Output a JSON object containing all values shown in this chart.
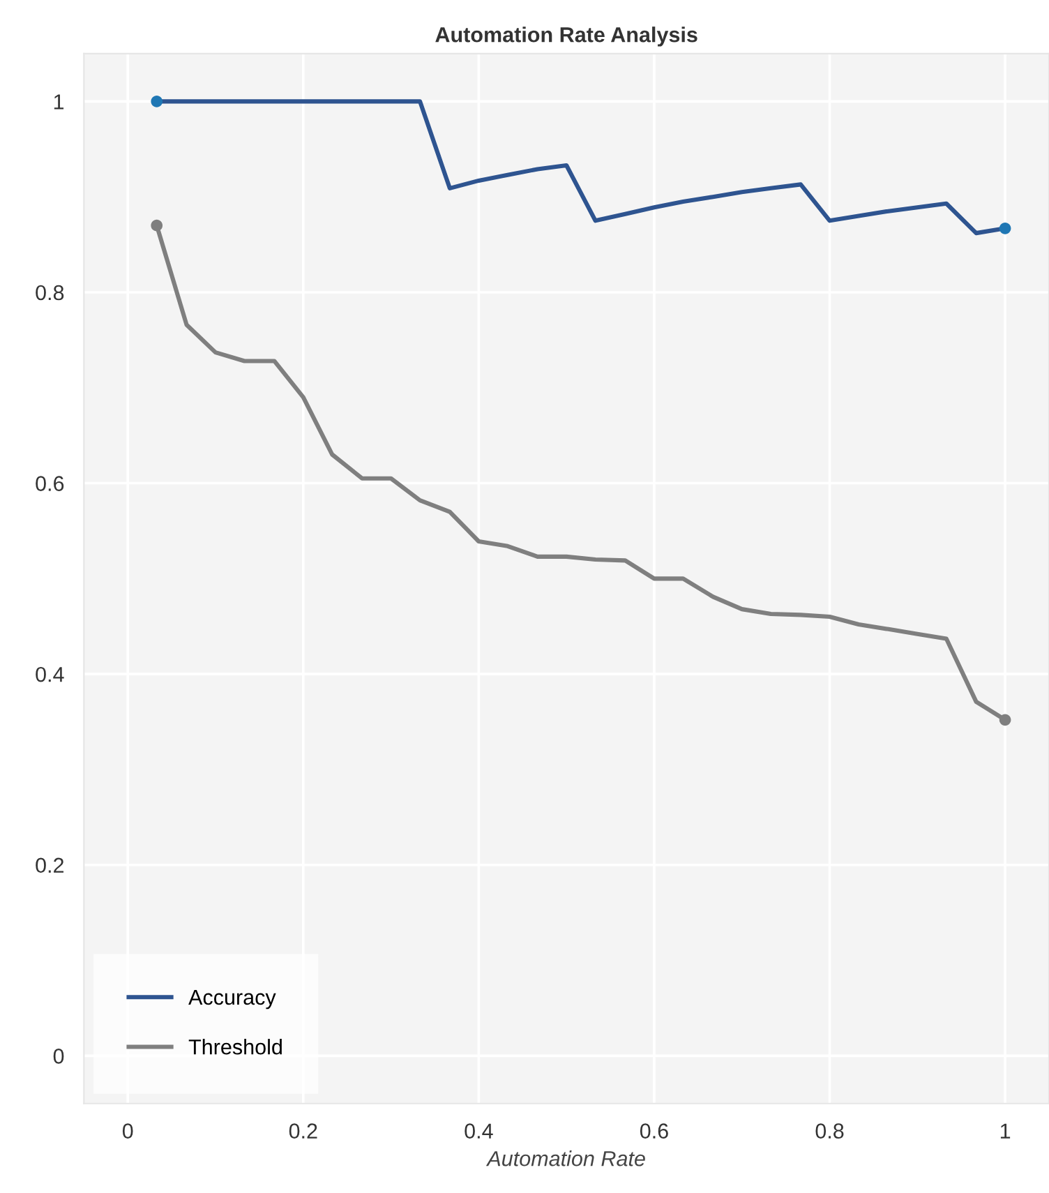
{
  "chart_data": {
    "type": "line",
    "title": "Automation Rate Analysis",
    "xlabel": "Automation Rate",
    "x": [
      0.033,
      0.067,
      0.1,
      0.133,
      0.167,
      0.2,
      0.233,
      0.267,
      0.3,
      0.333,
      0.367,
      0.4,
      0.433,
      0.467,
      0.5,
      0.533,
      0.567,
      0.6,
      0.633,
      0.667,
      0.7,
      0.733,
      0.767,
      0.8,
      0.833,
      0.867,
      0.9,
      0.933,
      0.967,
      1.0
    ],
    "series": [
      {
        "name": "Accuracy",
        "color": "#2e5490",
        "values": [
          1,
          1,
          1,
          1,
          1,
          1,
          1,
          1,
          1,
          1,
          0.909,
          0.917,
          0.923,
          0.929,
          0.933,
          0.875,
          0.882,
          0.889,
          0.895,
          0.9,
          0.905,
          0.909,
          0.913,
          0.875,
          0.88,
          0.885,
          0.889,
          0.893,
          0.862,
          0.867
        ]
      },
      {
        "name": "Threshold",
        "color": "#7f7f7f",
        "values": [
          0.87,
          0.766,
          0.737,
          0.728,
          0.728,
          0.69,
          0.63,
          0.605,
          0.605,
          0.582,
          0.57,
          0.539,
          0.534,
          0.523,
          0.523,
          0.52,
          0.519,
          0.5,
          0.5,
          0.481,
          0.468,
          0.463,
          0.462,
          0.46,
          0.452,
          0.447,
          0.442,
          0.437,
          0.371,
          0.352
        ]
      },
      {
        "type": "scatter",
        "color": "#1f77b4",
        "values": [
          1,
          null,
          null,
          null,
          null,
          null,
          null,
          null,
          null,
          null,
          null,
          null,
          null,
          null,
          null,
          null,
          null,
          null,
          null,
          null,
          null,
          null,
          null,
          null,
          null,
          null,
          null,
          null,
          null,
          0.867
        ]
      },
      {
        "type": "scatter",
        "color": "#7f7f7f",
        "values": [
          0.87,
          null,
          null,
          null,
          null,
          null,
          null,
          null,
          null,
          null,
          null,
          null,
          null,
          null,
          null,
          null,
          null,
          null,
          null,
          null,
          null,
          null,
          null,
          null,
          null,
          null,
          null,
          null,
          null,
          0.352
        ]
      }
    ],
    "xlim": [
      -0.05,
      1.05
    ],
    "ylim": [
      -0.05,
      1.05
    ],
    "xticks": [
      0,
      0.2,
      0.4,
      0.6,
      0.8,
      1
    ],
    "yticks": [
      0,
      0.2,
      0.4,
      0.6,
      0.8,
      1
    ],
    "grid": true,
    "legend": "bottom left",
    "line_style": "solid"
  }
}
